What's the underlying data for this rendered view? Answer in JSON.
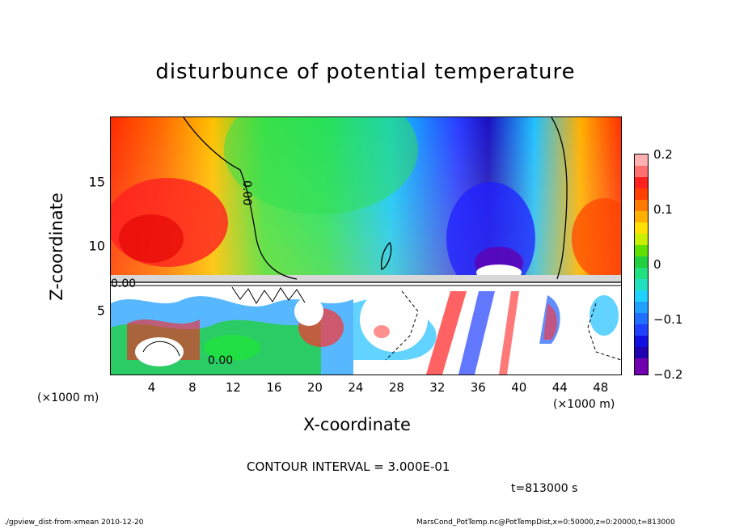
{
  "chart_data": {
    "type": "heatmap",
    "title": "disturbunce of potential temperature",
    "xlabel": "X-coordinate",
    "ylabel": "Z-coordinate",
    "x_unit_left": "(×1000 m)",
    "x_unit_right": "(×1000 m)",
    "xlim": [
      0,
      50
    ],
    "ylim": [
      0,
      20
    ],
    "x_ticks": [
      "4",
      "8",
      "12",
      "16",
      "20",
      "24",
      "28",
      "32",
      "36",
      "40",
      "44",
      "48"
    ],
    "x_tick_values": [
      4,
      8,
      12,
      16,
      20,
      24,
      28,
      32,
      36,
      40,
      44,
      48
    ],
    "y_ticks": [
      "5",
      "10",
      "15"
    ],
    "y_tick_values": [
      5,
      10,
      15
    ],
    "colorbar": {
      "ticks": [
        "0.2",
        "0.1",
        "0",
        "−0.1",
        "−0.2"
      ],
      "tick_values": [
        0.2,
        0.1,
        0,
        -0.1,
        -0.2
      ],
      "range": [
        -0.2,
        0.2
      ]
    },
    "contour_labels": [
      "0.00",
      "0.00",
      "0.00"
    ],
    "contour_interval": "CONTOUR INTERVAL = 3.000E-01",
    "time": "t=813000 s"
  },
  "footer": {
    "left": "./gpview_dist-from-xmean  2010-12-20",
    "right": "MarsCond_PotTemp.nc@PotTempDist,x=0:50000,z=0:20000,t=813000"
  }
}
